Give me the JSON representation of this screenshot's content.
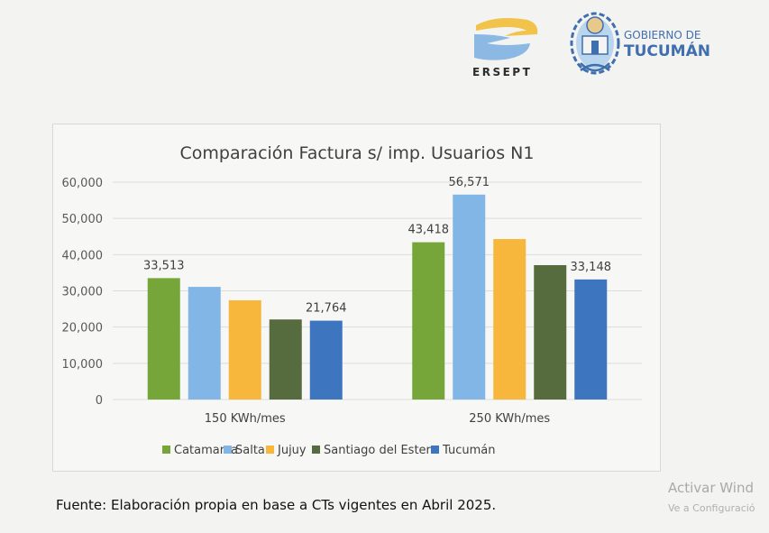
{
  "logos": {
    "ersept": "ERSEPT",
    "gob_line1": "GOBIERNO DE",
    "gob_line2": "TUCUMÁN"
  },
  "chart_data": {
    "type": "bar",
    "title": "Comparación Factura s/ imp. Usuarios N1",
    "xlabel": "",
    "ylabel": "",
    "ylim": [
      0,
      60000
    ],
    "yticks": [
      0,
      10000,
      20000,
      30000,
      40000,
      50000,
      60000
    ],
    "ytick_labels": [
      "0",
      "10,000",
      "20,000",
      "30,000",
      "40,000",
      "50,000",
      "60,000"
    ],
    "grid": true,
    "legend_position": "bottom",
    "categories": [
      "150 KWh/mes",
      "250 KWh/mes"
    ],
    "series": [
      {
        "name": "Catamarca",
        "color": "#76a53a",
        "values": [
          33513,
          43418
        ],
        "labels": [
          "33,513",
          "43,418"
        ]
      },
      {
        "name": "Salta",
        "color": "#82b6e6",
        "values": [
          31100,
          56571
        ],
        "labels": [
          "",
          "56,571"
        ]
      },
      {
        "name": "Jujuy",
        "color": "#f6b73c",
        "values": [
          27400,
          44300
        ],
        "labels": [
          "",
          ""
        ]
      },
      {
        "name": "Santiago del Estero",
        "color": "#566b3e",
        "values": [
          22100,
          37100
        ],
        "labels": [
          "",
          ""
        ]
      },
      {
        "name": "Tucumán",
        "color": "#3d75bf",
        "values": [
          21764,
          33148
        ],
        "labels": [
          "21,764",
          "33,148"
        ]
      }
    ]
  },
  "footer": {
    "source": "Fuente: Elaboración propia en base a CTs vigentes en Abril 2025."
  },
  "watermark": {
    "line1": "Activar Wind",
    "line2": "Ve a Configuració"
  }
}
